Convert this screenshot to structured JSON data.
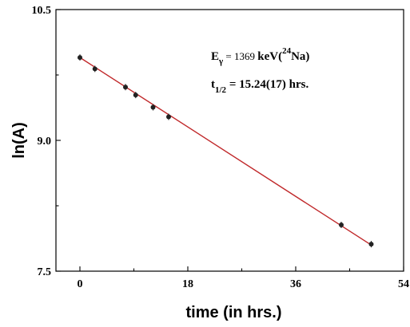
{
  "chart_data": {
    "type": "scatter",
    "xlabel": "time (in hrs.)",
    "ylabel": "ln(A)",
    "xlim": [
      -4,
      54
    ],
    "ylim": [
      7.5,
      10.5
    ],
    "xticks": [
      0,
      18,
      36,
      54
    ],
    "xtick_labels": [
      "0",
      "18",
      "36",
      "54"
    ],
    "yticks": [
      7.5,
      9.0,
      10.5
    ],
    "ytick_labels": [
      "7.5",
      "9.0",
      "10.5"
    ],
    "grid": false,
    "series": [
      {
        "values_x": [
          0,
          2.5,
          7.6,
          9.3,
          12.2,
          14.8,
          43.6,
          48.6
        ],
        "values_y": [
          9.95,
          9.82,
          9.61,
          9.52,
          9.38,
          9.27,
          8.03,
          7.81
        ],
        "marker_color": "#222222"
      }
    ],
    "fit_line": {
      "x": [
        0,
        48.6
      ],
      "y": [
        9.95,
        7.8
      ],
      "color": "#c0282a"
    },
    "annotations": [
      {
        "parts": {
          "symbol": "E",
          "subscript": "γ",
          "equals_value": " = 1369 ",
          "unit": "keV(",
          "superscript": "24",
          "isotope": "Na)"
        }
      },
      {
        "parts": {
          "symbol": "t",
          "subscript": "1/2",
          "rest": " = 15.24(17) hrs."
        }
      }
    ]
  }
}
